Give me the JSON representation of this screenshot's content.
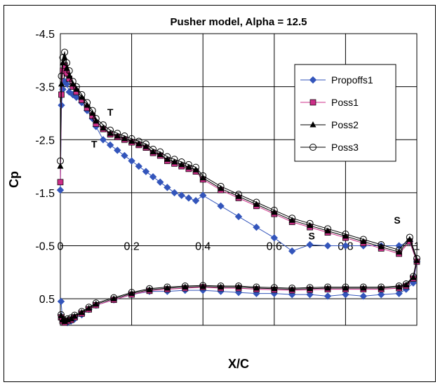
{
  "chart_data": {
    "type": "line",
    "title": "Pusher model, Alpha = 12.5",
    "xlabel": "X/C",
    "ylabel": "Cp",
    "xlim": [
      0,
      1
    ],
    "ylim": [
      -4.5,
      1.0
    ],
    "y_inverted": true,
    "x_ticks": [
      "0",
      "0.2",
      "0.4",
      "0.6",
      "0.8",
      "1"
    ],
    "y_ticks": [
      {
        "value": -4.5,
        "label": "-4.5"
      },
      {
        "value": -3.5,
        "label": "-3.5"
      },
      {
        "value": -2.5,
        "label": "-2.5"
      },
      {
        "value": -1.5,
        "label": "-1.5"
      },
      {
        "value": -0.5,
        "label": "-0.5"
      },
      {
        "value": 0.5,
        "label": "0.5"
      }
    ],
    "grid": true,
    "legend_position": "top-right",
    "annotations": [
      {
        "text": "T",
        "x": 0.14,
        "y": -2.95
      },
      {
        "text": "T",
        "x": 0.095,
        "y": -2.35
      },
      {
        "text": "S",
        "x": 0.705,
        "y": -0.62
      },
      {
        "text": "S",
        "x": 0.945,
        "y": -0.92
      }
    ],
    "series": [
      {
        "name": "Propoffs1",
        "color": "#3355bb",
        "marker": "diamond",
        "x": [
          0,
          0.003,
          0.007,
          0.012,
          0.018,
          0.025,
          0.035,
          0.045,
          0.06,
          0.075,
          0.09,
          0.1,
          0.12,
          0.14,
          0.16,
          0.18,
          0.2,
          0.22,
          0.24,
          0.26,
          0.28,
          0.3,
          0.32,
          0.34,
          0.36,
          0.38,
          0.4,
          0.45,
          0.5,
          0.55,
          0.6,
          0.65,
          0.7,
          0.75,
          0.8,
          0.85,
          0.9,
          0.95,
          0.98,
          1.0,
          0.99,
          0.97,
          0.95,
          0.9,
          0.85,
          0.8,
          0.75,
          0.7,
          0.65,
          0.6,
          0.55,
          0.5,
          0.45,
          0.4,
          0.35,
          0.3,
          0.25,
          0.2,
          0.15,
          0.1,
          0.08,
          0.06,
          0.04,
          0.03,
          0.02,
          0.012,
          0.006,
          0.002
        ],
        "y": [
          -1.55,
          -3.15,
          -3.45,
          -3.6,
          -3.55,
          -3.4,
          -3.35,
          -3.3,
          -3.2,
          -3.05,
          -2.9,
          -2.75,
          -2.5,
          -2.4,
          -2.3,
          -2.2,
          -2.1,
          -2.0,
          -1.9,
          -1.8,
          -1.7,
          -1.6,
          -1.5,
          -1.45,
          -1.4,
          -1.35,
          -1.45,
          -1.25,
          -1.05,
          -0.85,
          -0.65,
          -0.4,
          -0.52,
          -0.5,
          -0.5,
          -0.5,
          -0.5,
          -0.5,
          -0.58,
          -0.2,
          0.2,
          0.32,
          0.4,
          0.42,
          0.45,
          0.42,
          0.45,
          0.42,
          0.42,
          0.4,
          0.4,
          0.38,
          0.36,
          0.34,
          0.34,
          0.36,
          0.36,
          0.42,
          0.52,
          0.62,
          0.7,
          0.8,
          0.88,
          0.92,
          0.95,
          0.94,
          0.9,
          0.55
        ]
      },
      {
        "name": "Poss1",
        "color": "#cc2e88",
        "marker": "square",
        "x": [
          0,
          0.003,
          0.007,
          0.012,
          0.018,
          0.025,
          0.035,
          0.045,
          0.06,
          0.075,
          0.09,
          0.1,
          0.12,
          0.14,
          0.16,
          0.18,
          0.2,
          0.22,
          0.24,
          0.26,
          0.28,
          0.3,
          0.32,
          0.34,
          0.36,
          0.38,
          0.4,
          0.45,
          0.5,
          0.55,
          0.6,
          0.65,
          0.7,
          0.75,
          0.8,
          0.85,
          0.9,
          0.95,
          0.98,
          1.0,
          0.99,
          0.97,
          0.95,
          0.9,
          0.85,
          0.8,
          0.75,
          0.7,
          0.65,
          0.6,
          0.55,
          0.5,
          0.45,
          0.4,
          0.35,
          0.3,
          0.25,
          0.2,
          0.15,
          0.1,
          0.08,
          0.06,
          0.04,
          0.03,
          0.02,
          0.012,
          0.006,
          0.002
        ],
        "y": [
          -1.7,
          -3.35,
          -3.8,
          -3.9,
          -3.75,
          -3.65,
          -3.5,
          -3.4,
          -3.25,
          -3.1,
          -2.95,
          -2.8,
          -2.7,
          -2.6,
          -2.55,
          -2.5,
          -2.45,
          -2.4,
          -2.35,
          -2.25,
          -2.2,
          -2.1,
          -2.05,
          -2.0,
          -1.95,
          -1.9,
          -1.75,
          -1.55,
          -1.4,
          -1.25,
          -1.1,
          -0.95,
          -0.85,
          -0.75,
          -0.65,
          -0.55,
          -0.45,
          -0.35,
          -0.58,
          -0.2,
          0.12,
          0.26,
          0.3,
          0.32,
          0.32,
          0.32,
          0.32,
          0.33,
          0.34,
          0.33,
          0.32,
          0.3,
          0.3,
          0.28,
          0.3,
          0.32,
          0.35,
          0.42,
          0.52,
          0.62,
          0.7,
          0.78,
          0.85,
          0.9,
          0.92,
          0.95,
          0.92,
          0.85
        ]
      },
      {
        "name": "Poss2",
        "color": "#000000",
        "marker": "triangle",
        "x": [
          0,
          0.003,
          0.007,
          0.012,
          0.018,
          0.025,
          0.035,
          0.045,
          0.06,
          0.075,
          0.09,
          0.1,
          0.12,
          0.14,
          0.16,
          0.18,
          0.2,
          0.22,
          0.24,
          0.26,
          0.28,
          0.3,
          0.32,
          0.34,
          0.36,
          0.38,
          0.4,
          0.45,
          0.5,
          0.55,
          0.6,
          0.65,
          0.7,
          0.75,
          0.8,
          0.85,
          0.9,
          0.95,
          0.98,
          1.0,
          0.99,
          0.97,
          0.95,
          0.9,
          0.85,
          0.8,
          0.75,
          0.7,
          0.65,
          0.6,
          0.55,
          0.5,
          0.45,
          0.4,
          0.35,
          0.3,
          0.25,
          0.2,
          0.15,
          0.1,
          0.08,
          0.06,
          0.04,
          0.03,
          0.02,
          0.012,
          0.006,
          0.002
        ],
        "y": [
          -2.0,
          -3.55,
          -3.95,
          -4.05,
          -3.85,
          -3.7,
          -3.55,
          -3.45,
          -3.3,
          -3.15,
          -3.0,
          -2.85,
          -2.72,
          -2.62,
          -2.57,
          -2.52,
          -2.47,
          -2.42,
          -2.37,
          -2.27,
          -2.22,
          -2.13,
          -2.08,
          -2.03,
          -1.98,
          -1.93,
          -1.78,
          -1.58,
          -1.43,
          -1.28,
          -1.13,
          -0.98,
          -0.88,
          -0.78,
          -0.68,
          -0.58,
          -0.48,
          -0.38,
          -0.62,
          -0.22,
          0.1,
          0.24,
          0.28,
          0.3,
          0.3,
          0.3,
          0.3,
          0.31,
          0.32,
          0.31,
          0.3,
          0.28,
          0.28,
          0.27,
          0.28,
          0.3,
          0.33,
          0.4,
          0.5,
          0.6,
          0.68,
          0.76,
          0.83,
          0.88,
          0.9,
          0.93,
          0.9,
          0.82
        ]
      },
      {
        "name": "Poss3",
        "color": "#000000",
        "marker": "circle-open",
        "x": [
          0,
          0.003,
          0.007,
          0.012,
          0.018,
          0.025,
          0.035,
          0.045,
          0.06,
          0.075,
          0.09,
          0.1,
          0.12,
          0.14,
          0.16,
          0.18,
          0.2,
          0.22,
          0.24,
          0.26,
          0.28,
          0.3,
          0.32,
          0.34,
          0.36,
          0.38,
          0.4,
          0.45,
          0.5,
          0.55,
          0.6,
          0.65,
          0.7,
          0.75,
          0.8,
          0.85,
          0.9,
          0.95,
          0.98,
          1.0,
          0.99,
          0.97,
          0.95,
          0.9,
          0.85,
          0.8,
          0.75,
          0.7,
          0.65,
          0.6,
          0.55,
          0.5,
          0.45,
          0.4,
          0.35,
          0.3,
          0.25,
          0.2,
          0.15,
          0.1,
          0.08,
          0.06,
          0.04,
          0.03,
          0.02,
          0.012,
          0.006,
          0.002
        ],
        "y": [
          -2.1,
          -3.7,
          -4.05,
          -4.15,
          -3.95,
          -3.8,
          -3.6,
          -3.5,
          -3.35,
          -3.2,
          -3.05,
          -2.9,
          -2.78,
          -2.68,
          -2.62,
          -2.57,
          -2.52,
          -2.47,
          -2.42,
          -2.32,
          -2.27,
          -2.18,
          -2.13,
          -2.08,
          -2.03,
          -1.98,
          -1.82,
          -1.62,
          -1.47,
          -1.32,
          -1.17,
          -1.02,
          -0.92,
          -0.82,
          -0.72,
          -0.62,
          -0.52,
          -0.42,
          -0.66,
          -0.26,
          0.08,
          0.22,
          0.26,
          0.28,
          0.28,
          0.28,
          0.28,
          0.29,
          0.3,
          0.29,
          0.28,
          0.26,
          0.26,
          0.25,
          0.26,
          0.28,
          0.31,
          0.38,
          0.48,
          0.58,
          0.66,
          0.74,
          0.81,
          0.86,
          0.88,
          0.91,
          0.88,
          0.8
        ]
      }
    ]
  }
}
